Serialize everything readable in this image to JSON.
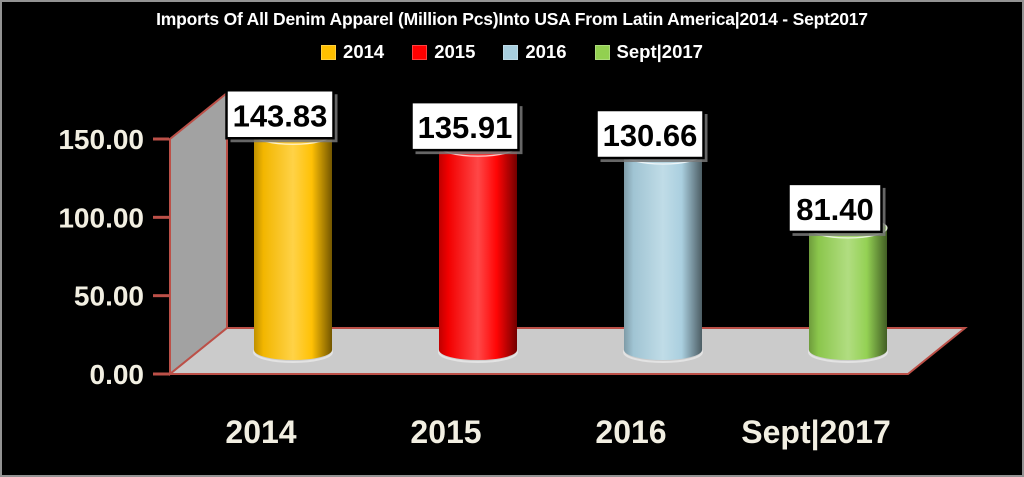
{
  "frame": {
    "background": "#000000",
    "border_color": "#939393"
  },
  "title": {
    "text": "Imports Of All Denim Apparel (Million Pcs)Into USA From Latin America|2014 - Sept2017",
    "color": "#FFFFFF"
  },
  "legend": {
    "position": "top",
    "text_color": "#FFFFFF",
    "items": [
      {
        "label": "2014",
        "color": "#FFC000"
      },
      {
        "label": "2015",
        "color": "#FF0000"
      },
      {
        "label": "2016",
        "color": "#A8CEDE"
      },
      {
        "label": "Sept|2017",
        "color": "#92D050"
      }
    ]
  },
  "chart_data": {
    "type": "bar",
    "subtype": "3d-cylinder",
    "title": "Imports Of All Denim Apparel (Million Pcs)Into USA From Latin America|2014 - Sept2017",
    "categories": [
      "2014",
      "2015",
      "2016",
      "Sept|2017"
    ],
    "values": [
      143.83,
      135.91,
      130.66,
      81.4
    ],
    "value_labels": [
      "143.83",
      "135.91",
      "130.66",
      "81.40"
    ],
    "bar_colors": [
      "#FFC000",
      "#FF0000",
      "#A8CEDE",
      "#92D050"
    ],
    "xlabel": "",
    "ylabel": "",
    "ylim": [
      0,
      150
    ],
    "y_ticks": [
      {
        "value": 0,
        "label": "0.00"
      },
      {
        "value": 50,
        "label": "50.00"
      },
      {
        "value": 100,
        "label": "100.00"
      },
      {
        "value": 150,
        "label": "150.00"
      }
    ],
    "grid": false,
    "legend_position": "top"
  },
  "colors": {
    "wall": "#A2A2A2",
    "floor": "#CBCBCB",
    "axis_edge": "#BC5048",
    "axis_text": "#F2EFE2",
    "category_text": "#F2EFE2",
    "value_box_bg": "#FFFFFF",
    "value_box_border": "#000000",
    "value_text": "#000000",
    "value_box_shadow": "#787878",
    "cylinder_bottom_rim": "#E3E3E3"
  }
}
